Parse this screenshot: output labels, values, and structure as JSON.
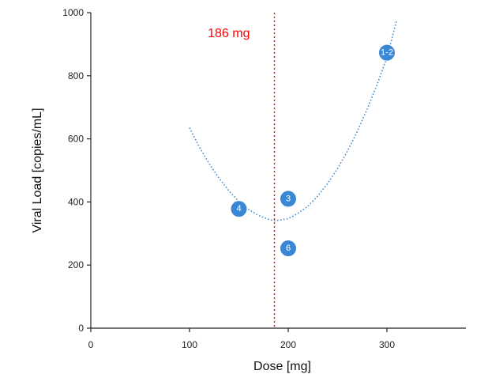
{
  "chart_data": {
    "type": "scatter",
    "xlabel": "Dose [mg]",
    "ylabel": "Viral Load [copies/mL]",
    "xlim": [
      0,
      380
    ],
    "ylim": [
      0,
      1000
    ],
    "x_ticks": [
      0,
      100,
      200,
      300
    ],
    "y_ticks": [
      0,
      200,
      400,
      600,
      800,
      1000
    ],
    "x_tick_labels": [
      "0",
      "100",
      "200",
      "300"
    ],
    "y_tick_labels": [
      "0",
      "200",
      "400",
      "600",
      "800",
      "1000"
    ],
    "grid": false,
    "points": [
      {
        "label": "4",
        "x": 150,
        "y": 378
      },
      {
        "label": "3",
        "x": 200,
        "y": 410
      },
      {
        "label": "6",
        "x": 200,
        "y": 253
      },
      {
        "label": "1-2",
        "x": 300,
        "y": 873
      }
    ],
    "trendline": {
      "style": "dotted",
      "x": [
        100,
        110,
        120,
        130,
        140,
        150,
        160,
        170,
        180,
        186,
        190,
        200,
        210,
        220,
        230,
        240,
        250,
        260,
        270,
        280,
        290,
        300,
        310
      ],
      "y": [
        635,
        574,
        521,
        475,
        435,
        402,
        376,
        357,
        345,
        341,
        342,
        347,
        364,
        387,
        419,
        459,
        506,
        561,
        624,
        694,
        772,
        857,
        978
      ]
    },
    "reference_line": {
      "x": 186,
      "label": "186 mg",
      "color": "#ff0000"
    },
    "point_color": "#3a87d6",
    "trend_color": "#3a87d6"
  }
}
